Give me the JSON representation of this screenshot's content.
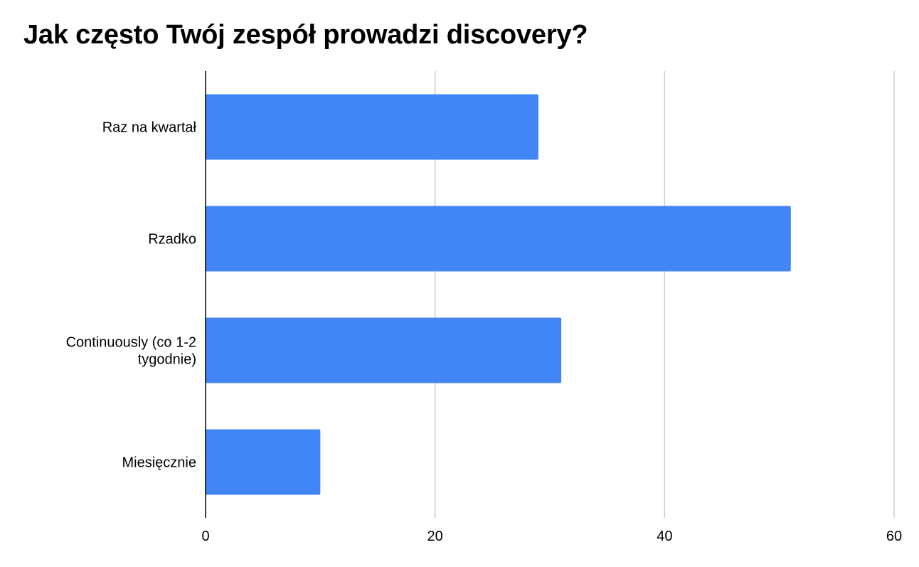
{
  "chart_data": {
    "type": "bar",
    "orientation": "horizontal",
    "title": "Jak często Twój zespół prowadzi discovery?",
    "xlabel": "",
    "ylabel": "",
    "categories": [
      [
        "Raz na kwartał"
      ],
      [
        "Rzadko"
      ],
      [
        "Continuously (co 1-2",
        "tygodnie)"
      ],
      [
        "Miesięcznie"
      ]
    ],
    "values": [
      29,
      51,
      31,
      10
    ],
    "xlim": [
      0,
      60
    ],
    "xticks": [
      "0",
      "20",
      "40",
      "60"
    ],
    "grid": true,
    "legend": "none",
    "colors": {
      "bar": "#4285f4",
      "grid": "#cccccc",
      "axis": "#000000",
      "text": "#000000"
    }
  }
}
